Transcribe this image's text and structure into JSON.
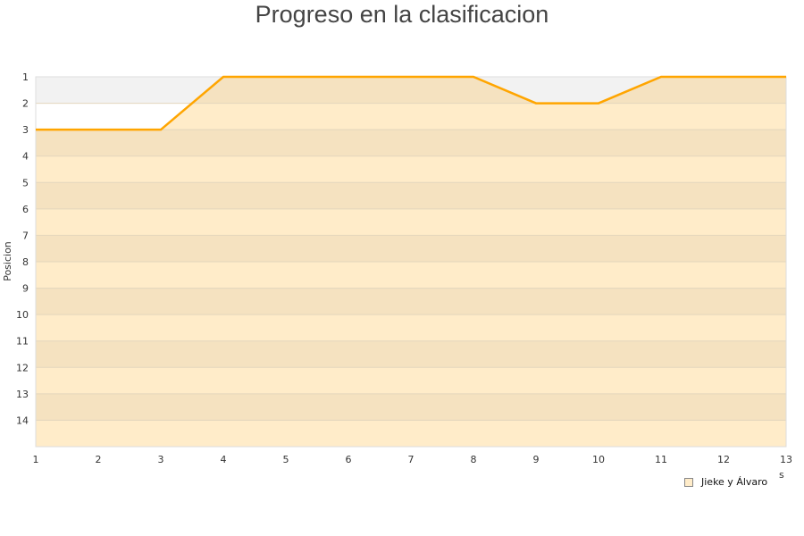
{
  "chart_data": {
    "type": "area",
    "title": "Progreso en la clasificacion",
    "ylabel": "Posicion",
    "xlabel": "s",
    "x": [
      1,
      2,
      3,
      4,
      5,
      6,
      7,
      8,
      9,
      10,
      11,
      12,
      13
    ],
    "y_ticks": [
      1,
      2,
      3,
      4,
      5,
      6,
      7,
      8,
      9,
      10,
      11,
      12,
      13,
      14
    ],
    "ylim": [
      1,
      15
    ],
    "y_inverted": true,
    "grid": true,
    "legend_position": "bottom-right",
    "series": [
      {
        "name": "Jieke y Álvaro",
        "values": [
          3,
          3,
          3,
          1,
          1,
          1,
          1,
          1,
          2,
          2,
          1,
          1,
          1
        ],
        "color": "#ffa500",
        "fill": "#ffecc9"
      }
    ]
  }
}
